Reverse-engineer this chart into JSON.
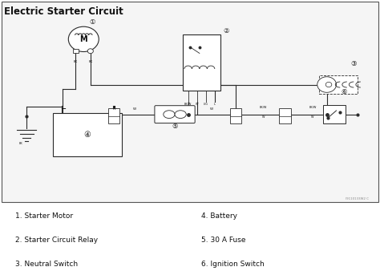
{
  "title": "Electric Starter Circuit",
  "title_fontsize": 8.5,
  "title_fontweight": "bold",
  "background_color": "#ffffff",
  "line_color": "#2a2a2a",
  "text_color": "#111111",
  "legend_items": [
    "1. Starter Motor",
    "2. Starter Circuit Relay",
    "3. Neutral Switch",
    "4. Battery",
    "5. 30 A Fuse",
    "6. Ignition Switch"
  ],
  "figsize": [
    4.74,
    3.48
  ],
  "dpi": 100
}
